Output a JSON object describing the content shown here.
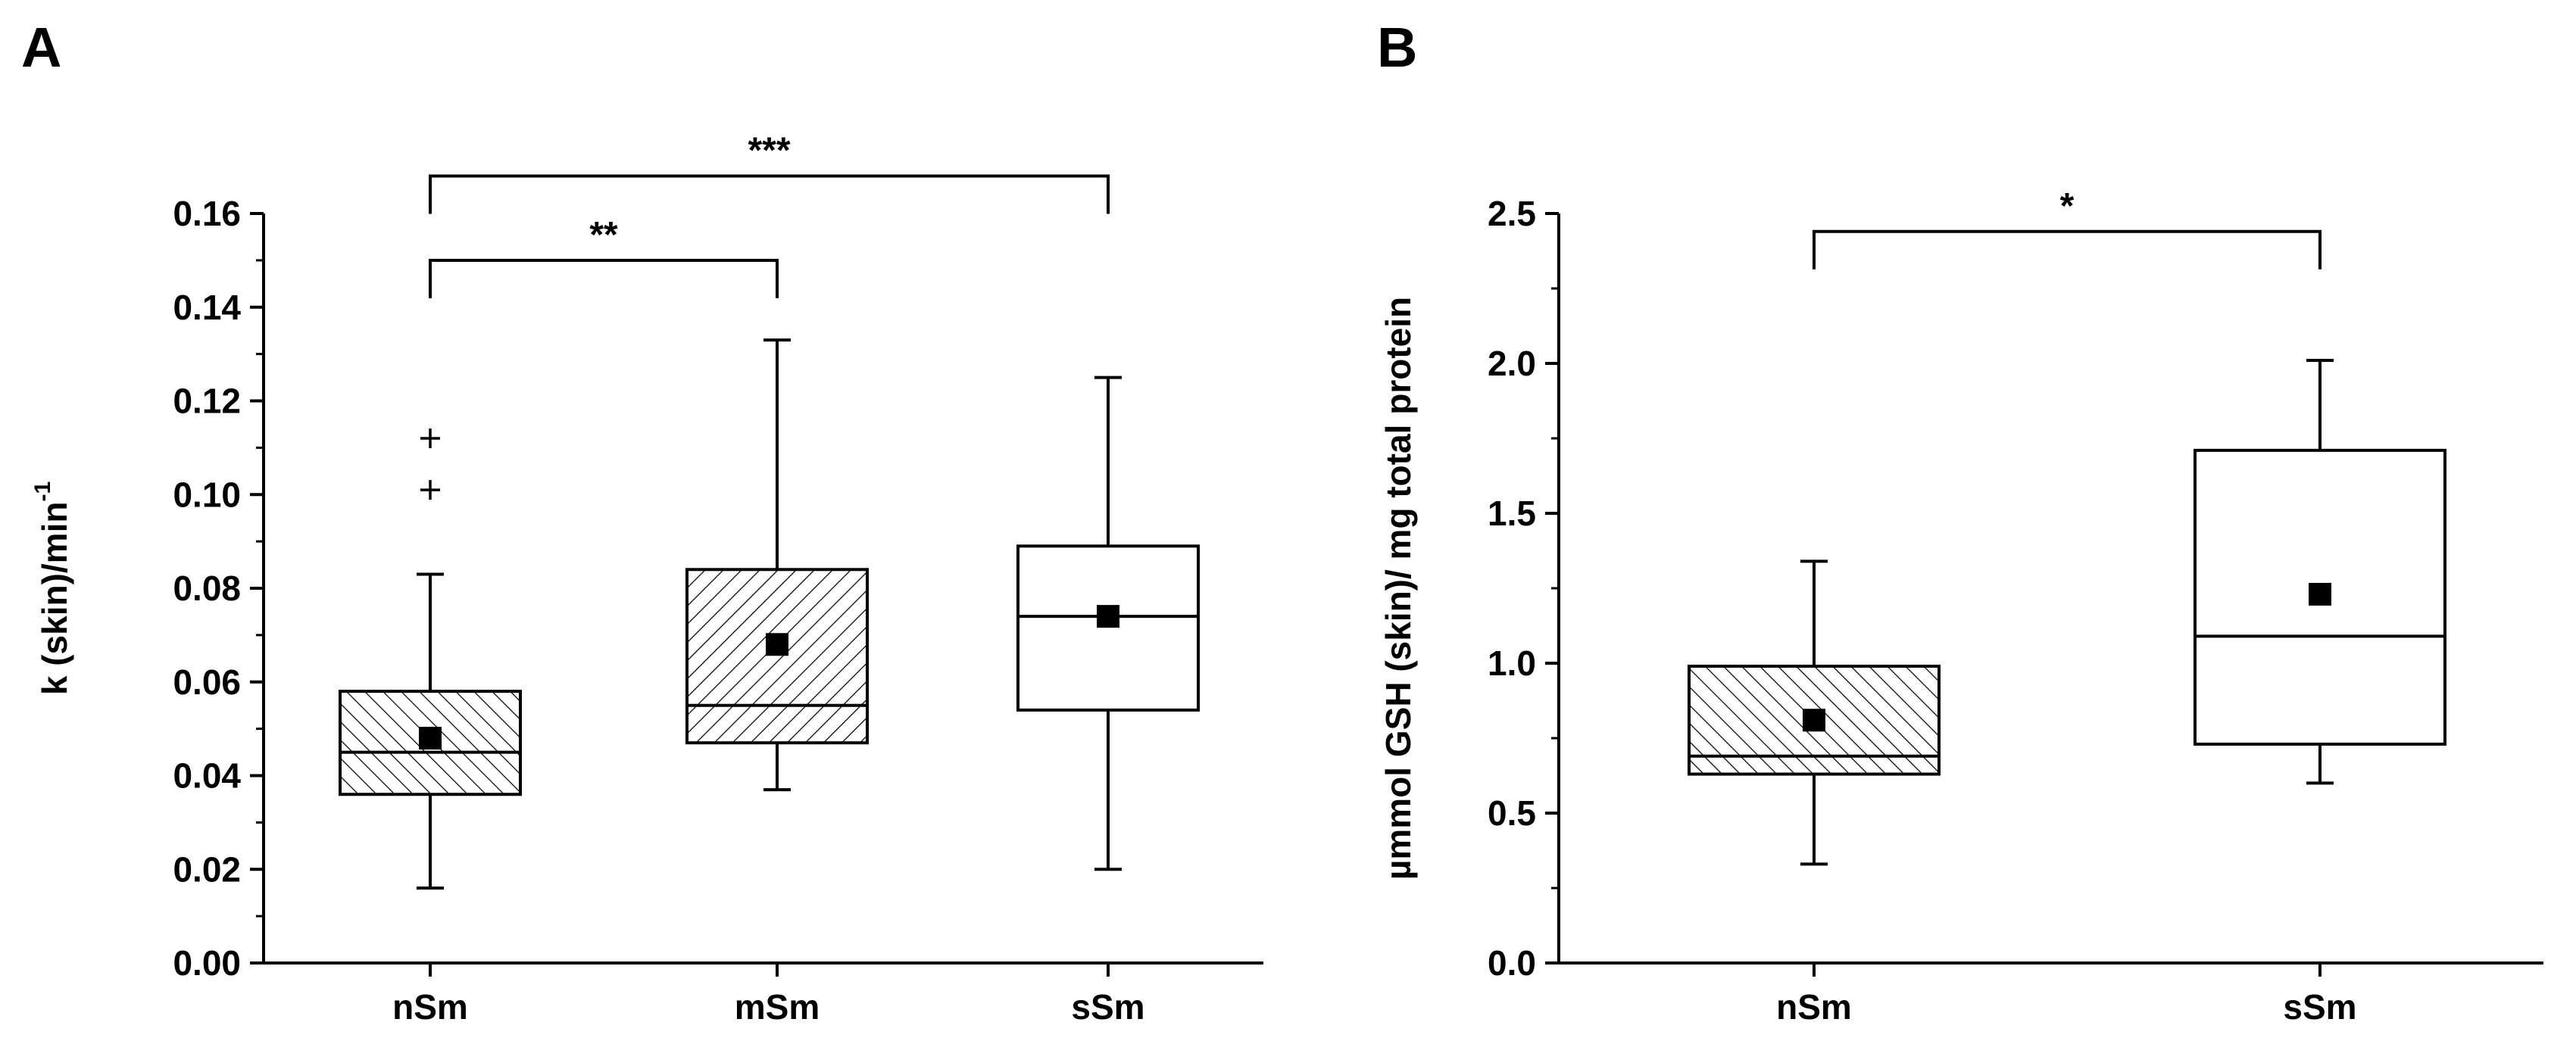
{
  "chart_data": [
    {
      "type": "box",
      "panel": "A",
      "ylabel": "k (skin)/min",
      "ylabel_superscript": "-1",
      "ylim": [
        0,
        0.16
      ],
      "yticks": [
        0.0,
        0.02,
        0.04,
        0.06,
        0.08,
        0.1,
        0.12,
        0.14,
        0.16
      ],
      "ytick_labels": [
        "0.00",
        "0.02",
        "0.04",
        "0.06",
        "0.08",
        "0.10",
        "0.12",
        "0.14",
        "0.16"
      ],
      "categories": [
        "nSm",
        "mSm",
        "sSm"
      ],
      "boxes": [
        {
          "category": "nSm",
          "whisker_low": 0.016,
          "q1": 0.036,
          "median": 0.045,
          "q3": 0.058,
          "whisker_high": 0.083,
          "mean": 0.048,
          "outliers": [
            0.101,
            0.112
          ],
          "hatched": true,
          "hatch": "backslash"
        },
        {
          "category": "mSm",
          "whisker_low": 0.037,
          "q1": 0.047,
          "median": 0.055,
          "q3": 0.084,
          "whisker_high": 0.133,
          "mean": 0.068,
          "outliers": [],
          "hatched": true,
          "hatch": "slash"
        },
        {
          "category": "sSm",
          "whisker_low": 0.02,
          "q1": 0.054,
          "median": 0.074,
          "q3": 0.089,
          "whisker_high": 0.125,
          "mean": 0.074,
          "outliers": [],
          "hatched": false,
          "hatch": "none"
        }
      ],
      "significance": [
        {
          "from": "nSm",
          "to": "mSm",
          "label": "**",
          "y": 0.15
        },
        {
          "from": "nSm",
          "to": "sSm",
          "label": "***",
          "y": 0.168
        }
      ]
    },
    {
      "type": "box",
      "panel": "B",
      "ylabel": "µmmol GSH (skin)/ mg total protein",
      "ylim": [
        0,
        2.5
      ],
      "yticks": [
        0.0,
        0.5,
        1.0,
        1.5,
        2.0,
        2.5
      ],
      "ytick_labels": [
        "0.0",
        "0.5",
        "1.0",
        "1.5",
        "2.0",
        "2.5"
      ],
      "categories": [
        "nSm",
        "sSm"
      ],
      "boxes": [
        {
          "category": "nSm",
          "whisker_low": 0.33,
          "q1": 0.63,
          "median": 0.69,
          "q3": 0.99,
          "whisker_high": 1.34,
          "mean": 0.81,
          "outliers": [],
          "hatched": true,
          "hatch": "backslash"
        },
        {
          "category": "sSm",
          "whisker_low": 0.6,
          "q1": 0.73,
          "median": 1.09,
          "q3": 1.71,
          "whisker_high": 2.01,
          "mean": 1.23,
          "outliers": [],
          "hatched": false,
          "hatch": "none"
        }
      ],
      "significance": [
        {
          "from": "nSm",
          "to": "sSm",
          "label": "*",
          "y": 2.44
        }
      ]
    }
  ]
}
